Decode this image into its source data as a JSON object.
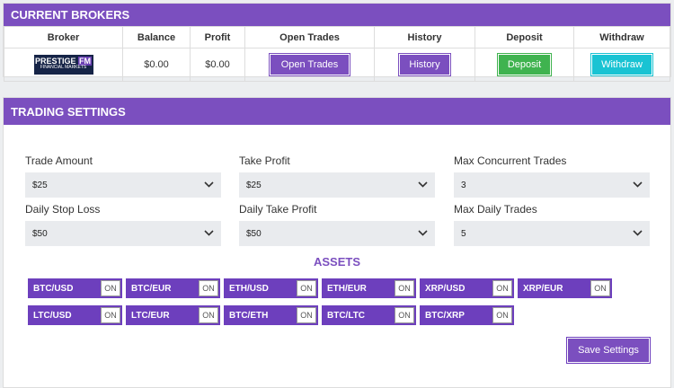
{
  "brokers": {
    "title": "CURRENT BROKERS",
    "columns": [
      "Broker",
      "Balance",
      "Profit",
      "Open Trades",
      "History",
      "Deposit",
      "Withdraw"
    ],
    "rows": [
      {
        "logo": {
          "name": "PRESTIGE",
          "accent": "FM",
          "sub": "FINANCIAL MARKETS"
        },
        "balance": "$0.00",
        "profit": "$0.00",
        "buttons": [
          "Open Trades",
          "History",
          "Deposit",
          "Withdraw"
        ]
      }
    ]
  },
  "settings": {
    "title": "TRADING SETTINGS",
    "fields": [
      {
        "label": "Trade Amount",
        "value": "$25"
      },
      {
        "label": "Take Profit",
        "value": "$25"
      },
      {
        "label": "Max Concurrent Trades",
        "value": "3"
      },
      {
        "label": "Daily Stop Loss",
        "value": "$50"
      },
      {
        "label": "Daily Take Profit",
        "value": "$50"
      },
      {
        "label": "Max Daily Trades",
        "value": "5"
      }
    ],
    "assets_title": "ASSETS",
    "assets": [
      {
        "name": "BTC/USD",
        "state": "ON"
      },
      {
        "name": "BTC/EUR",
        "state": "ON"
      },
      {
        "name": "ETH/USD",
        "state": "ON"
      },
      {
        "name": "ETH/EUR",
        "state": "ON"
      },
      {
        "name": "XRP/USD",
        "state": "ON"
      },
      {
        "name": "XRP/EUR",
        "state": "ON"
      },
      {
        "name": "LTC/USD",
        "state": "ON"
      },
      {
        "name": "LTC/EUR",
        "state": "ON"
      },
      {
        "name": "BTC/ETH",
        "state": "ON"
      },
      {
        "name": "BTC/LTC",
        "state": "ON"
      },
      {
        "name": "BTC/XRP",
        "state": "ON"
      }
    ],
    "save": "Save Settings"
  }
}
